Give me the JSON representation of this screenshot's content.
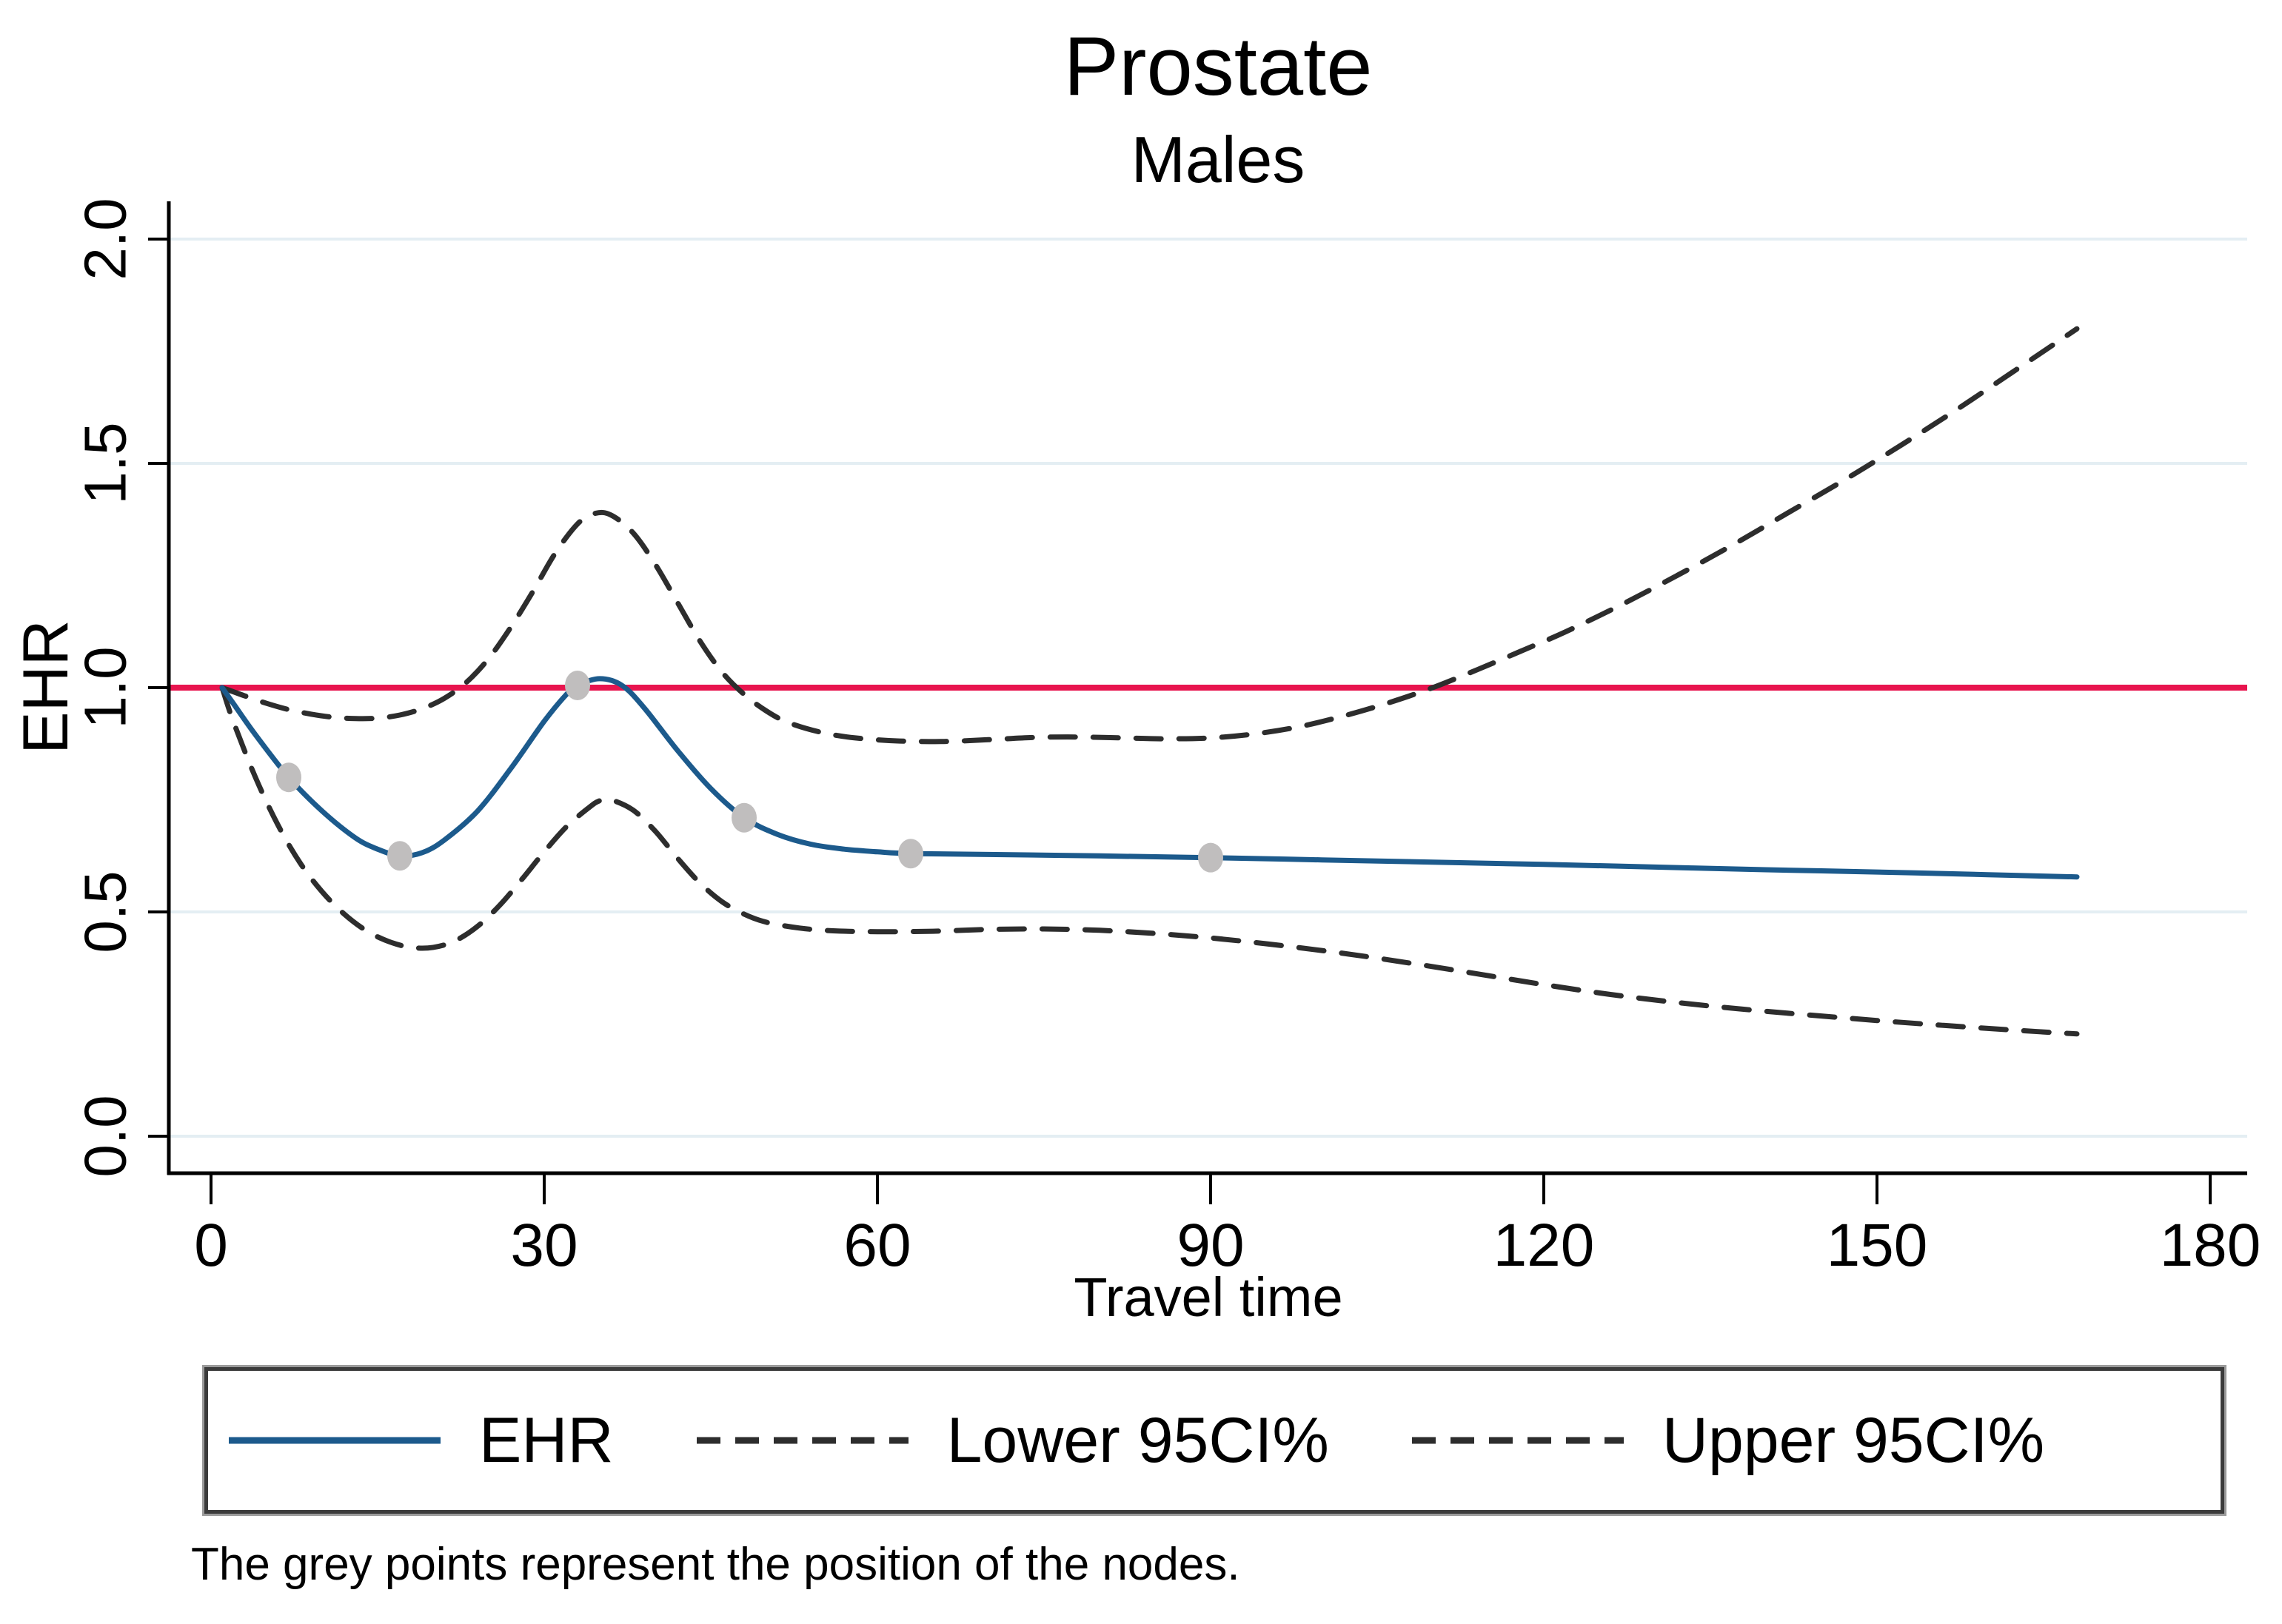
{
  "chart_data": {
    "type": "line",
    "title": "Prostate",
    "subtitle": "Males",
    "xlabel": "Travel time",
    "ylabel": "EHR",
    "xlim": [
      0,
      185
    ],
    "ylim": [
      0,
      2.08
    ],
    "grid": true,
    "grid_color": "#e4eef3",
    "axis_color": "#000000",
    "background_color": "#ffffff",
    "legend_position": "bottom",
    "x_ticks": [
      {
        "value": 0,
        "label": "0"
      },
      {
        "value": 30,
        "label": "30"
      },
      {
        "value": 60,
        "label": "60"
      },
      {
        "value": 90,
        "label": "90"
      },
      {
        "value": 120,
        "label": "120"
      },
      {
        "value": 150,
        "label": "150"
      },
      {
        "value": 180,
        "label": "180"
      }
    ],
    "y_ticks": [
      {
        "value": 0,
        "label": "0.0"
      },
      {
        "value": 0.5,
        "label": "0.5"
      },
      {
        "value": 1,
        "label": "1.0"
      },
      {
        "value": 1.5,
        "label": "1.5"
      },
      {
        "value": 2,
        "label": "2.0"
      }
    ],
    "reference_line": {
      "value": 1.0,
      "color": "#e8144e"
    },
    "series": [
      {
        "name": "EHR",
        "style": "solid",
        "color": "#1c5a8c",
        "points": [
          [
            1,
            1.0
          ],
          [
            2,
            0.965
          ],
          [
            4,
            0.895
          ],
          [
            7,
            0.8
          ],
          [
            10,
            0.725
          ],
          [
            13,
            0.665
          ],
          [
            15,
            0.64
          ],
          [
            17,
            0.625
          ],
          [
            19,
            0.632
          ],
          [
            21,
            0.66
          ],
          [
            24,
            0.725
          ],
          [
            27,
            0.82
          ],
          [
            30,
            0.925
          ],
          [
            32,
            0.985
          ],
          [
            33,
            1.005
          ],
          [
            35,
            1.02
          ],
          [
            37,
            1.005
          ],
          [
            39,
            0.955
          ],
          [
            42,
            0.86
          ],
          [
            45,
            0.775
          ],
          [
            48,
            0.71
          ],
          [
            51,
            0.673
          ],
          [
            54,
            0.651
          ],
          [
            57,
            0.64
          ],
          [
            60,
            0.634
          ],
          [
            63,
            0.63
          ],
          [
            70,
            0.628
          ],
          [
            80,
            0.625
          ],
          [
            90,
            0.621
          ],
          [
            100,
            0.616
          ],
          [
            110,
            0.611
          ],
          [
            120,
            0.606
          ],
          [
            130,
            0.6
          ],
          [
            140,
            0.594
          ],
          [
            150,
            0.589
          ],
          [
            160,
            0.583
          ],
          [
            168,
            0.578
          ]
        ]
      },
      {
        "name": "Lower 95CI%",
        "style": "dashed",
        "color": "#2d2d2d",
        "points": [
          [
            1,
            1.0
          ],
          [
            2,
            0.925
          ],
          [
            4,
            0.8
          ],
          [
            6,
            0.695
          ],
          [
            8,
            0.61
          ],
          [
            10,
            0.545
          ],
          [
            12,
            0.495
          ],
          [
            14,
            0.458
          ],
          [
            16,
            0.434
          ],
          [
            18,
            0.421
          ],
          [
            20,
            0.421
          ],
          [
            22,
            0.436
          ],
          [
            24,
            0.468
          ],
          [
            26,
            0.515
          ],
          [
            28,
            0.573
          ],
          [
            30,
            0.634
          ],
          [
            32,
            0.69
          ],
          [
            34,
            0.732
          ],
          [
            35,
            0.748
          ],
          [
            36,
            0.75
          ],
          [
            38,
            0.727
          ],
          [
            40,
            0.68
          ],
          [
            42,
            0.62
          ],
          [
            44,
            0.565
          ],
          [
            46,
            0.523
          ],
          [
            48,
            0.495
          ],
          [
            50,
            0.477
          ],
          [
            53,
            0.464
          ],
          [
            56,
            0.458
          ],
          [
            60,
            0.456
          ],
          [
            65,
            0.457
          ],
          [
            70,
            0.461
          ],
          [
            75,
            0.462
          ],
          [
            80,
            0.459
          ],
          [
            85,
            0.452
          ],
          [
            90,
            0.442
          ],
          [
            95,
            0.429
          ],
          [
            100,
            0.414
          ],
          [
            105,
            0.397
          ],
          [
            110,
            0.378
          ],
          [
            115,
            0.358
          ],
          [
            120,
            0.338
          ],
          [
            126,
            0.316
          ],
          [
            132,
            0.298
          ],
          [
            138,
            0.283
          ],
          [
            144,
            0.27
          ],
          [
            150,
            0.258
          ],
          [
            156,
            0.247
          ],
          [
            162,
            0.237
          ],
          [
            168,
            0.228
          ]
        ]
      },
      {
        "name": "Upper 95CI%",
        "style": "dashed",
        "color": "#2d2d2d",
        "points": [
          [
            1,
            1.0
          ],
          [
            3,
            0.982
          ],
          [
            5,
            0.965
          ],
          [
            7,
            0.951
          ],
          [
            9,
            0.941
          ],
          [
            11,
            0.934
          ],
          [
            13,
            0.931
          ],
          [
            15,
            0.932
          ],
          [
            17,
            0.939
          ],
          [
            19,
            0.953
          ],
          [
            21,
            0.976
          ],
          [
            23,
            1.012
          ],
          [
            25,
            1.065
          ],
          [
            27,
            1.135
          ],
          [
            29,
            1.215
          ],
          [
            31,
            1.3
          ],
          [
            33,
            1.365
          ],
          [
            34.5,
            1.388
          ],
          [
            36,
            1.385
          ],
          [
            38,
            1.345
          ],
          [
            40,
            1.275
          ],
          [
            42,
            1.19
          ],
          [
            44,
            1.105
          ],
          [
            46,
            1.035
          ],
          [
            48,
            0.985
          ],
          [
            50,
            0.948
          ],
          [
            52,
            0.922
          ],
          [
            55,
            0.9
          ],
          [
            58,
            0.888
          ],
          [
            62,
            0.881
          ],
          [
            66,
            0.88
          ],
          [
            70,
            0.884
          ],
          [
            74,
            0.889
          ],
          [
            78,
            0.89
          ],
          [
            82,
            0.888
          ],
          [
            86,
            0.886
          ],
          [
            90,
            0.888
          ],
          [
            94,
            0.897
          ],
          [
            98,
            0.913
          ],
          [
            102,
            0.937
          ],
          [
            106,
            0.966
          ],
          [
            110,
            1.0
          ],
          [
            114,
            1.04
          ],
          [
            118,
            1.082
          ],
          [
            122,
            1.125
          ],
          [
            127,
            1.185
          ],
          [
            132,
            1.25
          ],
          [
            137,
            1.318
          ],
          [
            142,
            1.39
          ],
          [
            147,
            1.462
          ],
          [
            152,
            1.538
          ],
          [
            157,
            1.617
          ],
          [
            162,
            1.7
          ],
          [
            168,
            1.8
          ]
        ]
      }
    ],
    "nodes": {
      "color": "#c0bebe",
      "points": [
        [
          7,
          0.8
        ],
        [
          17,
          0.625
        ],
        [
          33,
          1.005
        ],
        [
          48,
          0.71
        ],
        [
          63,
          0.63
        ],
        [
          90,
          0.621
        ]
      ]
    },
    "note": "The grey points represent the position of the nodes."
  }
}
